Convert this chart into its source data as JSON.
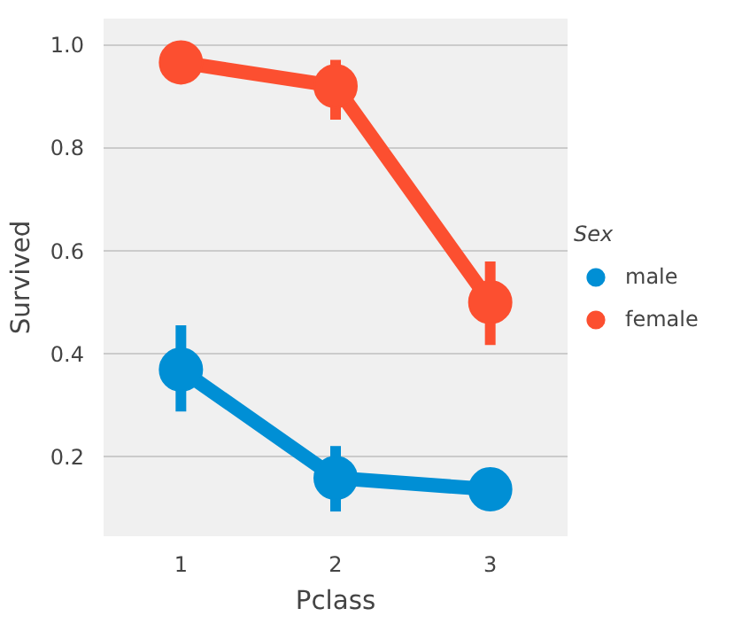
{
  "chart_data": {
    "type": "line",
    "xlabel": "Pclass",
    "ylabel": "Survived",
    "legend_title": "Sex",
    "categories": [
      "1",
      "2",
      "3"
    ],
    "series": [
      {
        "name": "male",
        "color": "#008fd5",
        "values": [
          0.369,
          0.159,
          0.137
        ],
        "errors": [
          [
            0.288,
            0.455
          ],
          [
            0.094,
            0.221
          ],
          null
        ]
      },
      {
        "name": "female",
        "color": "#fc4f30",
        "values": [
          0.965,
          0.919,
          0.5
        ],
        "errors": [
          [
            0.926,
            0.965
          ],
          [
            0.854,
            0.97
          ],
          [
            0.417,
            0.579
          ]
        ]
      }
    ],
    "ylim": [
      0.046,
      1.05
    ],
    "yticks": [
      {
        "value": 0.2,
        "label": "0.2"
      },
      {
        "value": 0.4,
        "label": "0.4"
      },
      {
        "value": 0.6,
        "label": "0.6"
      },
      {
        "value": 0.8,
        "label": "0.8"
      },
      {
        "value": 1.0,
        "label": "1.0"
      }
    ],
    "grid": "y",
    "legend": "right",
    "marker": "circle",
    "line_style": "solid"
  }
}
